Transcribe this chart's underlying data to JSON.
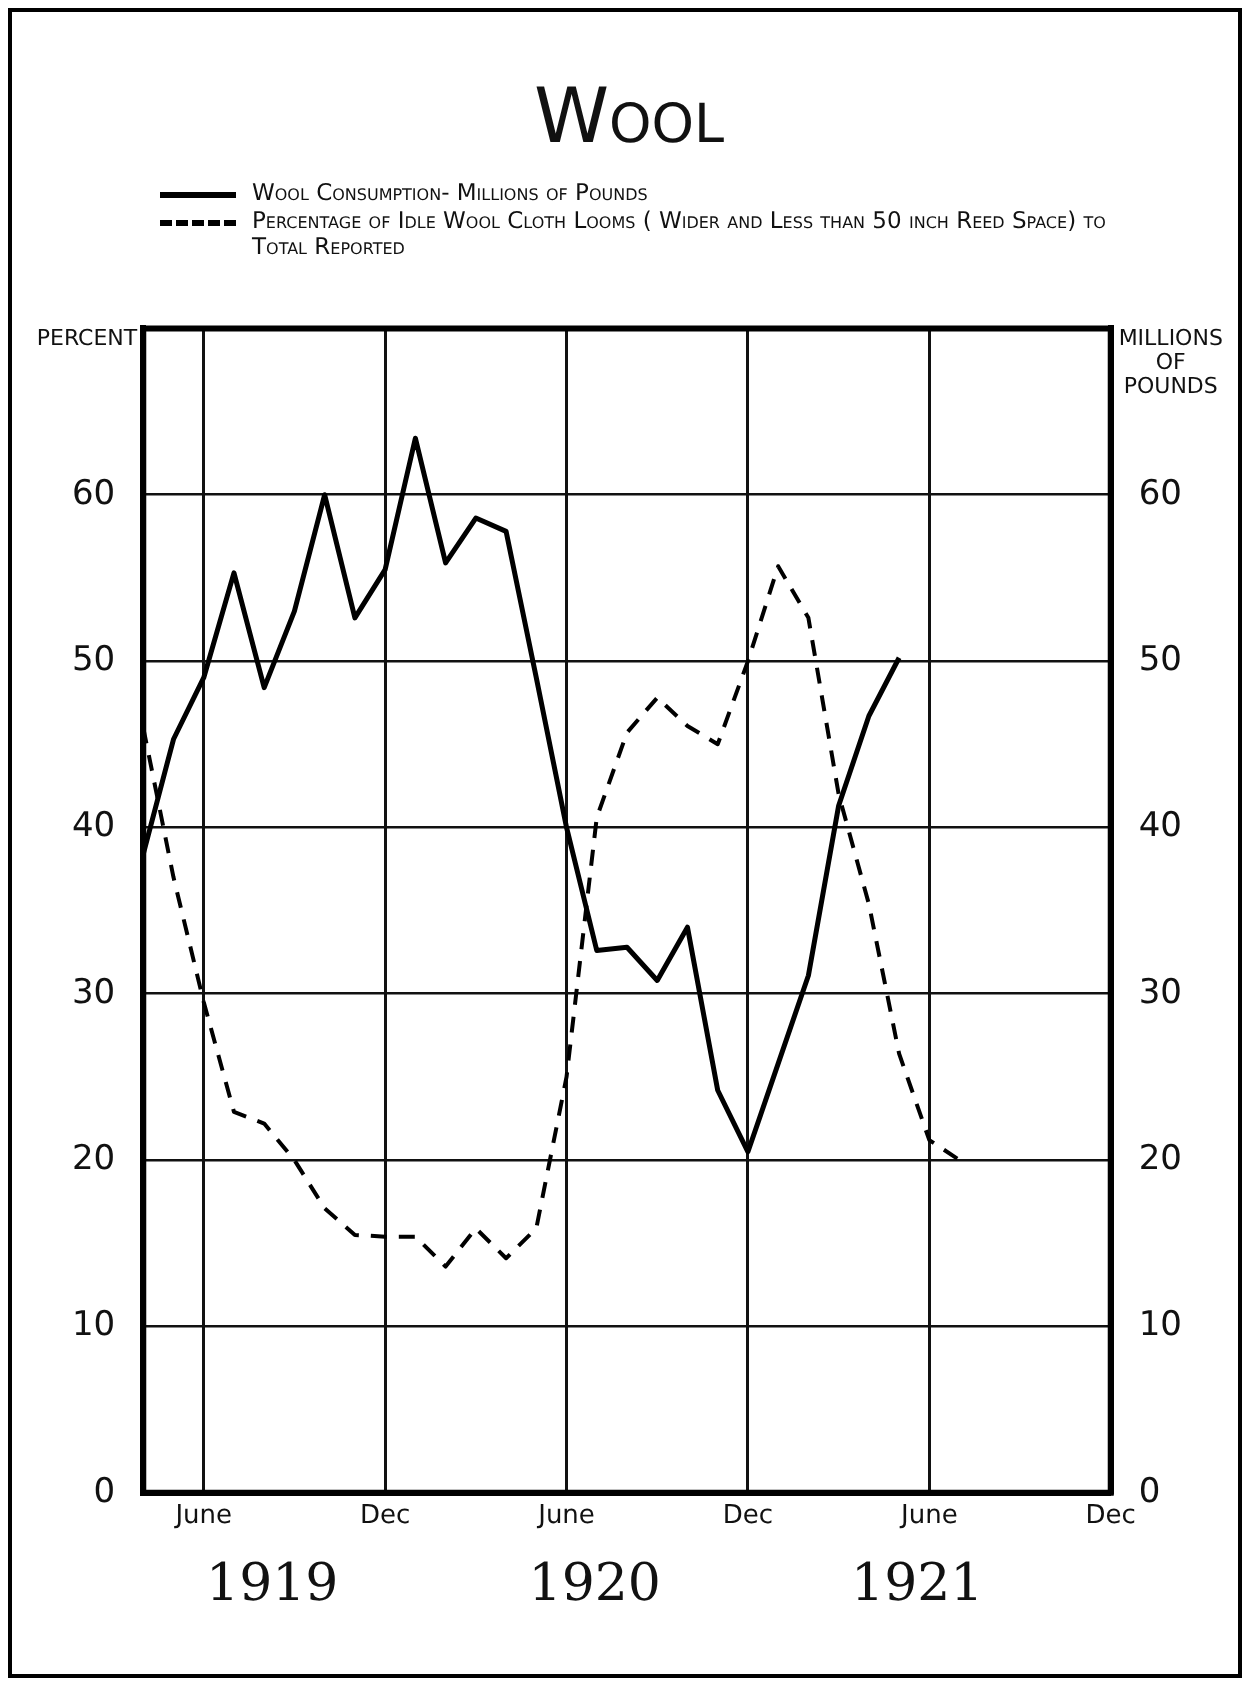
{
  "chart_data": {
    "type": "line",
    "title": "Wool",
    "ylabel": "PERCENT",
    "y2label": "MILLIONS OF POUNDS",
    "categories": [
      null,
      null,
      "June",
      null,
      null,
      null,
      null,
      null,
      "Dec",
      null,
      null,
      null,
      null,
      null,
      "June",
      null,
      null,
      null,
      null,
      null,
      "Dec",
      null,
      null,
      null,
      null,
      null,
      "June",
      null,
      null,
      null,
      null,
      null,
      "Dec"
    ],
    "series": [
      {
        "name": "Wool Consumption- Millions of Pounds",
        "color": "#000000",
        "line_style": "solid",
        "values": [
          38.4,
          45.3,
          49,
          55.3,
          48.4,
          53,
          60,
          52.6,
          55.5,
          63.4,
          55.9,
          58.6,
          57.8,
          49,
          40,
          32.6,
          32.8,
          30.8,
          34,
          24.2,
          20.5,
          25.8,
          31.1,
          41.3,
          46.7,
          50.2,
          null,
          null,
          null,
          null,
          null,
          null,
          null
        ]
      },
      {
        "name": "Percentage of Idle Wool Cloth Looms ( Wider and Less than 50 inch Reed Space) to Total Reported",
        "color": "#000000",
        "line_style": "dashed",
        "values": [
          46,
          37,
          29.5,
          22.9,
          22.2,
          20,
          17.1,
          15.5,
          15.4,
          15.4,
          13.6,
          15.9,
          14.1,
          15.9,
          25,
          40.6,
          45.7,
          47.8,
          46.1,
          45,
          50,
          55.7,
          52.6,
          42,
          35.4,
          26.4,
          21.2,
          20,
          null,
          null,
          null,
          null,
          null
        ]
      }
    ],
    "ylim": [
      0,
      70
    ],
    "yticks": [
      0,
      10,
      20,
      30,
      40,
      50,
      60
    ],
    "y2lim": [
      0,
      70
    ],
    "y2ticks": [
      0,
      10,
      20,
      30,
      40,
      50,
      60
    ],
    "annotations": [
      "1919",
      "1920",
      "1921"
    ],
    "grid": true,
    "legend": "top",
    "marker": "none"
  }
}
